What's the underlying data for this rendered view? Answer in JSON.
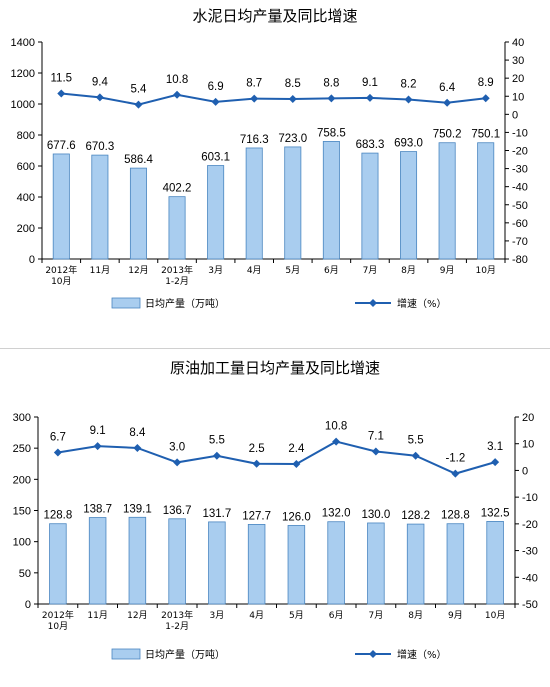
{
  "chart_data": [
    {
      "type": "bar",
      "title": "水泥日均产量及同比增速",
      "categories": [
        [
          "2012年",
          "10月"
        ],
        [
          "11月"
        ],
        [
          "12月"
        ],
        [
          "2013年",
          "1-2月"
        ],
        [
          "3月"
        ],
        [
          "4月"
        ],
        [
          "5月"
        ],
        [
          "6月"
        ],
        [
          "7月"
        ],
        [
          "8月"
        ],
        [
          "9月"
        ],
        [
          "10月"
        ]
      ],
      "series": [
        {
          "name": "日均产量（万吨）",
          "type": "bar",
          "axis": "left",
          "values": [
            677.6,
            670.3,
            586.4,
            402.2,
            603.1,
            716.3,
            723.0,
            758.5,
            683.3,
            693.0,
            750.2,
            750.1
          ],
          "labels": [
            "677.6",
            "670.3",
            "586.4",
            "402.2",
            "603.1",
            "716.3",
            "723.0",
            "758.5",
            "683.3",
            "693.0",
            "750.2",
            "750.1"
          ]
        },
        {
          "name": "增速（%）",
          "type": "line",
          "axis": "right",
          "values": [
            11.5,
            9.4,
            5.4,
            10.8,
            6.9,
            8.7,
            8.5,
            8.8,
            9.1,
            8.2,
            6.4,
            8.9
          ],
          "labels": [
            "11.5",
            "9.4",
            "5.4",
            "10.8",
            "6.9",
            "8.7",
            "8.5",
            "8.8",
            "9.1",
            "8.2",
            "6.4",
            "8.9"
          ]
        }
      ],
      "ylim_left": [
        0,
        1400
      ],
      "yticks_left": [
        "0",
        "200",
        "400",
        "600",
        "800",
        "1000",
        "1200",
        "1400"
      ],
      "ylim_right": [
        -80,
        40
      ],
      "yticks_right": [
        "-80",
        "-70",
        "-60",
        "-50",
        "-40",
        "-30",
        "-20",
        "-10",
        "0",
        "10",
        "20",
        "30",
        "40"
      ],
      "grid": false,
      "legend": "bottom",
      "colors": {
        "bar": "#a9cdef",
        "bar_edge": "#4a86c0",
        "line": "#1f5fb0"
      }
    },
    {
      "type": "bar",
      "title": "原油加工量日均产量及同比增速",
      "categories": [
        [
          "2012年",
          "10月"
        ],
        [
          "11月"
        ],
        [
          "12月"
        ],
        [
          "2013年",
          "1-2月"
        ],
        [
          "3月"
        ],
        [
          "4月"
        ],
        [
          "5月"
        ],
        [
          "6月"
        ],
        [
          "7月"
        ],
        [
          "8月"
        ],
        [
          "9月"
        ],
        [
          "10月"
        ]
      ],
      "series": [
        {
          "name": "日均产量（万吨）",
          "type": "bar",
          "axis": "left",
          "values": [
            128.8,
            138.7,
            139.1,
            136.7,
            131.7,
            127.7,
            126.0,
            132.0,
            130.0,
            128.2,
            128.8,
            132.5
          ],
          "labels": [
            "128.8",
            "138.7",
            "139.1",
            "136.7",
            "131.7",
            "127.7",
            "126.0",
            "132.0",
            "130.0",
            "128.2",
            "128.8",
            "132.5"
          ]
        },
        {
          "name": "增速（%）",
          "type": "line",
          "axis": "right",
          "values": [
            6.7,
            9.1,
            8.4,
            3.0,
            5.5,
            2.5,
            2.4,
            10.8,
            7.1,
            5.5,
            -1.2,
            3.1
          ],
          "labels": [
            "6.7",
            "9.1",
            "8.4",
            "3.0",
            "5.5",
            "2.5",
            "2.4",
            "10.8",
            "7.1",
            "5.5",
            "-1.2",
            "3.1"
          ]
        }
      ],
      "ylim_left": [
        0,
        300
      ],
      "yticks_left": [
        "0",
        "50",
        "100",
        "150",
        "200",
        "250",
        "300"
      ],
      "ylim_right": [
        -50,
        20
      ],
      "yticks_right": [
        "-50",
        "-40",
        "-30",
        "-20",
        "-10",
        "0",
        "10",
        "20"
      ],
      "grid": false,
      "legend": "bottom",
      "colors": {
        "bar": "#a9cdef",
        "bar_edge": "#4a86c0",
        "line": "#1f5fb0"
      }
    }
  ]
}
